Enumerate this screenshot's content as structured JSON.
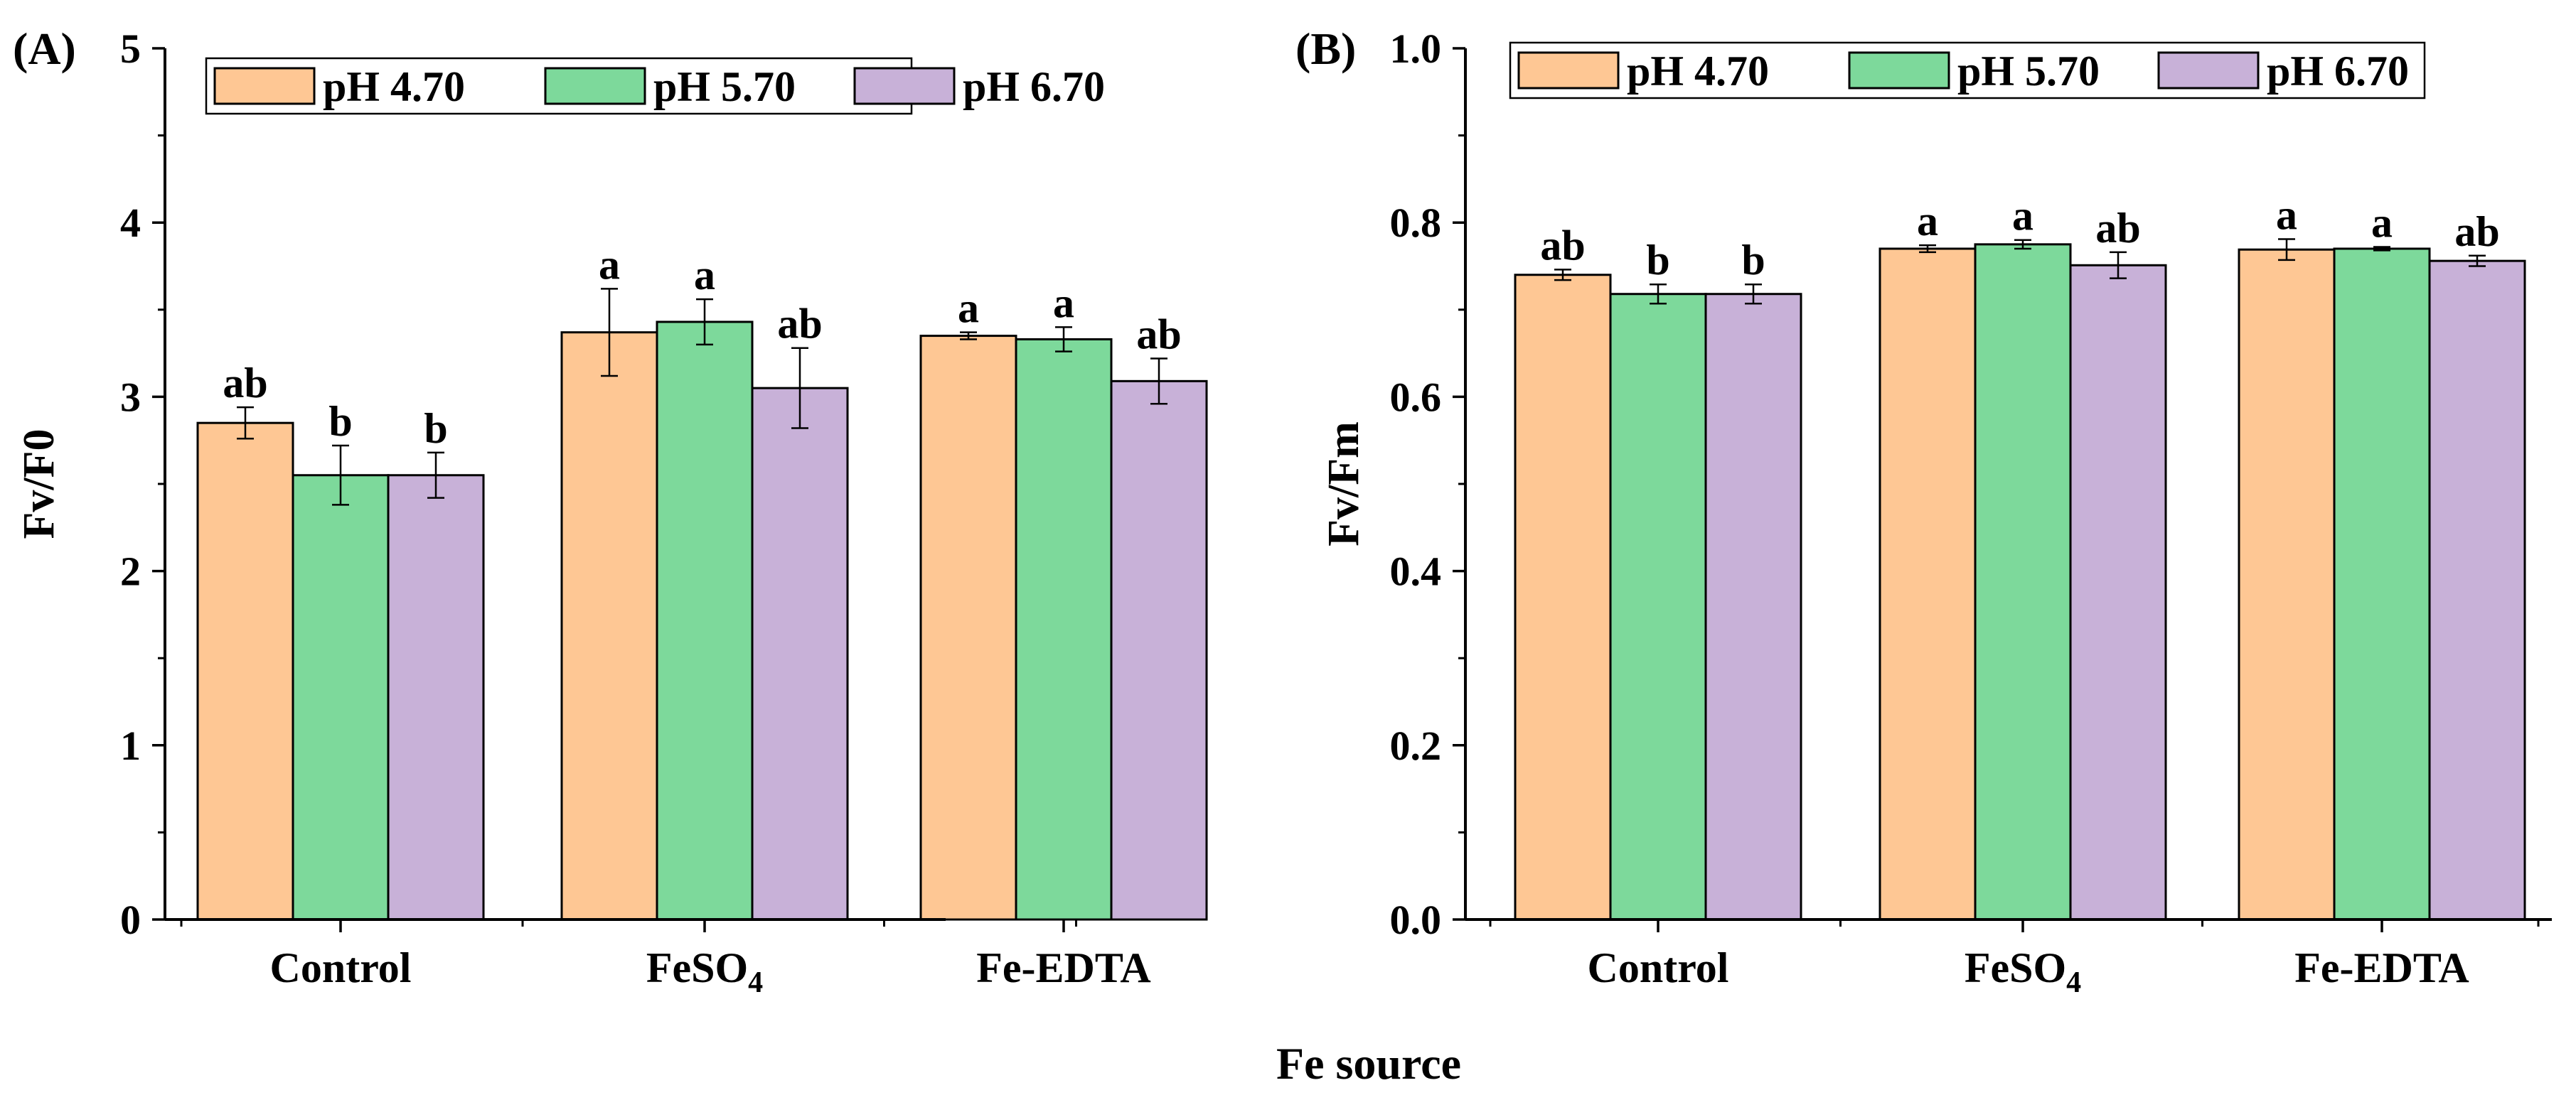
{
  "figure": {
    "common_xlabel": "Fe source"
  },
  "legend_entries": [
    "pH 4.70",
    "pH 5.70",
    "pH 6.70"
  ],
  "colors": {
    "pH 4.70": "#FEC794",
    "pH 5.70": "#7DD99B",
    "pH 6.70": "#C8B1D8",
    "axis": "#000000"
  },
  "chart_data": [
    {
      "panel": "(A)",
      "type": "bar",
      "ylabel": "Fv/F0",
      "xlabel": "",
      "ylim": [
        0,
        5
      ],
      "yticks": [
        "0",
        "1",
        "2",
        "3",
        "4",
        "5"
      ],
      "categories": [
        "Control",
        "FeSO4",
        "Fe-EDTA"
      ],
      "category_labels": [
        {
          "main": "Control",
          "sub": ""
        },
        {
          "main": "FeSO",
          "sub": "4"
        },
        {
          "main": "Fe-EDTA",
          "sub": ""
        }
      ],
      "legend_position": "top-left",
      "grid": false,
      "series": [
        {
          "name": "pH 4.70",
          "values": [
            2.85,
            3.37,
            3.35
          ],
          "errors": [
            0.09,
            0.25,
            0.02
          ],
          "letters": [
            "ab",
            "a",
            "a"
          ]
        },
        {
          "name": "pH 5.70",
          "values": [
            2.55,
            3.43,
            3.33
          ],
          "errors": [
            0.17,
            0.13,
            0.07
          ],
          "letters": [
            "b",
            "a",
            "a"
          ]
        },
        {
          "name": "pH 6.70",
          "values": [
            2.55,
            3.05,
            3.09
          ],
          "errors": [
            0.13,
            0.23,
            0.13
          ],
          "letters": [
            "b",
            "ab",
            "ab"
          ]
        }
      ]
    },
    {
      "panel": "(B)",
      "type": "bar",
      "ylabel": "Fv/Fm",
      "xlabel": "",
      "ylim": [
        0,
        1.0
      ],
      "yticks": [
        "0.0",
        "0.2",
        "0.4",
        "0.6",
        "0.8",
        "1.0"
      ],
      "categories": [
        "Control",
        "FeSO4",
        "Fe-EDTA"
      ],
      "category_labels": [
        {
          "main": "Control",
          "sub": ""
        },
        {
          "main": "FeSO",
          "sub": "4"
        },
        {
          "main": "Fe-EDTA",
          "sub": ""
        }
      ],
      "legend_position": "top-left",
      "grid": false,
      "series": [
        {
          "name": "pH 4.70",
          "values": [
            0.74,
            0.77,
            0.769
          ],
          "errors": [
            0.006,
            0.004,
            0.012
          ],
          "letters": [
            "ab",
            "a",
            "a"
          ]
        },
        {
          "name": "pH 5.70",
          "values": [
            0.718,
            0.775,
            0.77
          ],
          "errors": [
            0.011,
            0.005,
            0.002
          ],
          "letters": [
            "b",
            "a",
            "a"
          ]
        },
        {
          "name": "pH 6.70",
          "values": [
            0.718,
            0.751,
            0.756
          ],
          "errors": [
            0.011,
            0.015,
            0.006
          ],
          "letters": [
            "b",
            "ab",
            "ab"
          ]
        }
      ]
    }
  ]
}
